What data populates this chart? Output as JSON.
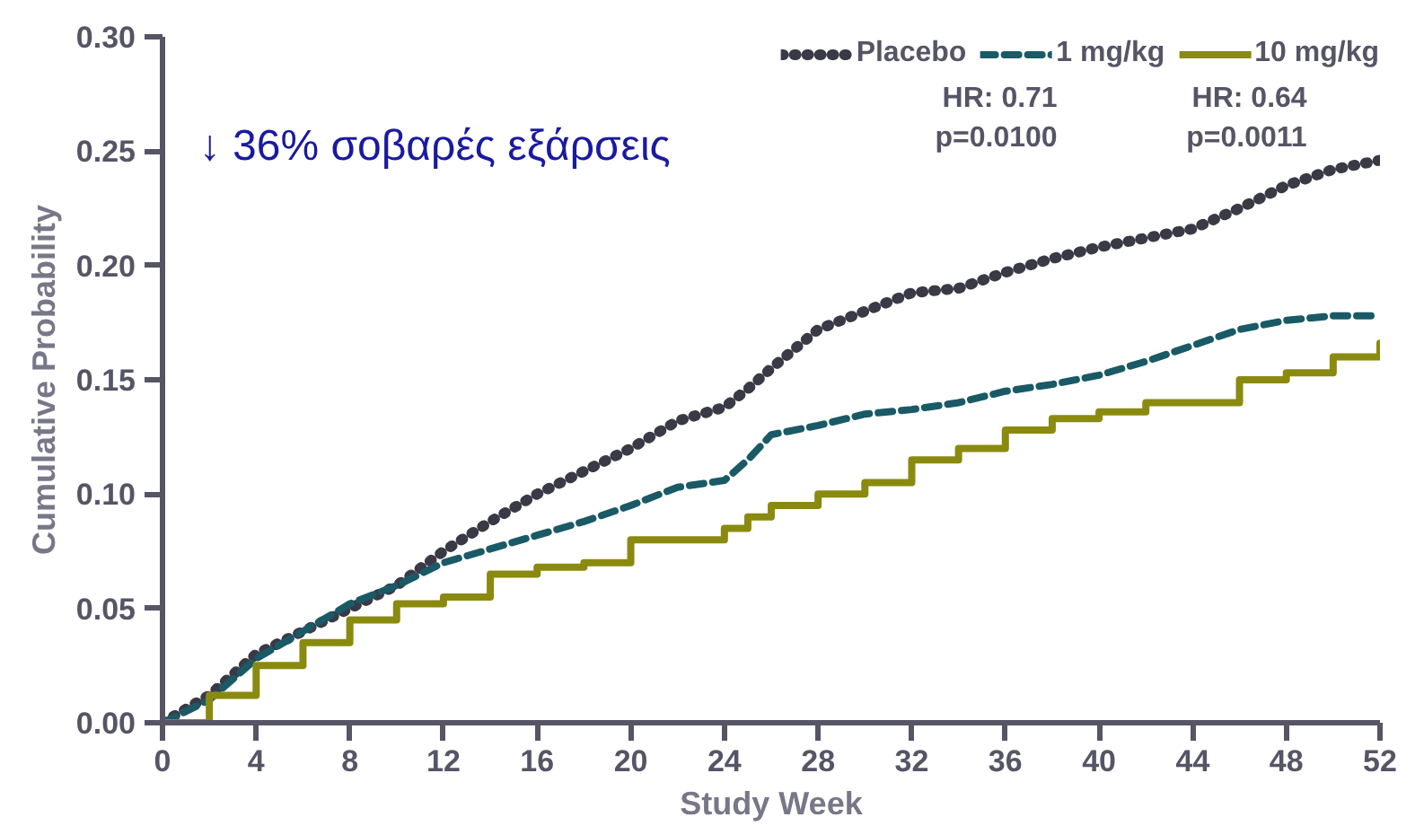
{
  "chart_data": {
    "type": "line",
    "xlabel": "Study Week",
    "ylabel": "Cumulative Probability",
    "x": [
      0,
      2,
      4,
      6,
      8,
      10,
      12,
      14,
      16,
      18,
      20,
      22,
      24,
      25,
      26,
      28,
      30,
      32,
      34,
      36,
      38,
      40,
      42,
      44,
      46,
      48,
      50,
      52
    ],
    "series": [
      {
        "name": "Placebo",
        "color": "#3a3a46",
        "line_style": "dotted",
        "values": [
          0,
          0.012,
          0.03,
          0.04,
          0.05,
          0.06,
          0.075,
          0.088,
          0.1,
          0.11,
          0.12,
          0.132,
          0.138,
          0.146,
          0.155,
          0.172,
          0.18,
          0.188,
          0.19,
          0.197,
          0.203,
          0.208,
          0.212,
          0.216,
          0.225,
          0.235,
          0.242,
          0.246
        ]
      },
      {
        "name": "1 mg/kg",
        "color": "#1a5a66",
        "line_style": "dashed",
        "values": [
          0,
          0.01,
          0.028,
          0.04,
          0.052,
          0.06,
          0.07,
          0.076,
          0.082,
          0.088,
          0.095,
          0.103,
          0.106,
          0.115,
          0.126,
          0.13,
          0.135,
          0.137,
          0.14,
          0.145,
          0.148,
          0.152,
          0.158,
          0.165,
          0.172,
          0.176,
          0.178,
          0.178
        ]
      },
      {
        "name": "10 mg/kg",
        "color": "#8a8a10",
        "type": "step",
        "line_style": "solid",
        "values": [
          0,
          0.012,
          0.025,
          0.035,
          0.045,
          0.052,
          0.055,
          0.065,
          0.068,
          0.07,
          0.08,
          0.08,
          0.085,
          0.09,
          0.095,
          0.1,
          0.105,
          0.115,
          0.12,
          0.128,
          0.133,
          0.136,
          0.14,
          0.14,
          0.15,
          0.153,
          0.16,
          0.166
        ]
      }
    ],
    "xlim": [
      0,
      52
    ],
    "xticks": [
      0,
      4,
      8,
      12,
      16,
      20,
      24,
      28,
      32,
      36,
      40,
      44,
      48,
      52
    ],
    "ylim": [
      0,
      0.3
    ],
    "yticks": [
      {
        "value": 0,
        "label": "0.00"
      },
      {
        "value": 0.05,
        "label": "0.05"
      },
      {
        "value": 0.1,
        "label": "0.10"
      },
      {
        "value": 0.15,
        "label": "0.15"
      },
      {
        "value": 0.2,
        "label": "0.20"
      },
      {
        "value": 0.25,
        "label": "0.25"
      },
      {
        "value": 0.3,
        "label": "0.30"
      }
    ],
    "grid": false,
    "legend": "top right",
    "annotations": [
      "↓ 36% σοβαρές εξάρσεις",
      "HR: 0.71\np=0.0100",
      "HR: 0.64\np=0.0011"
    ]
  }
}
